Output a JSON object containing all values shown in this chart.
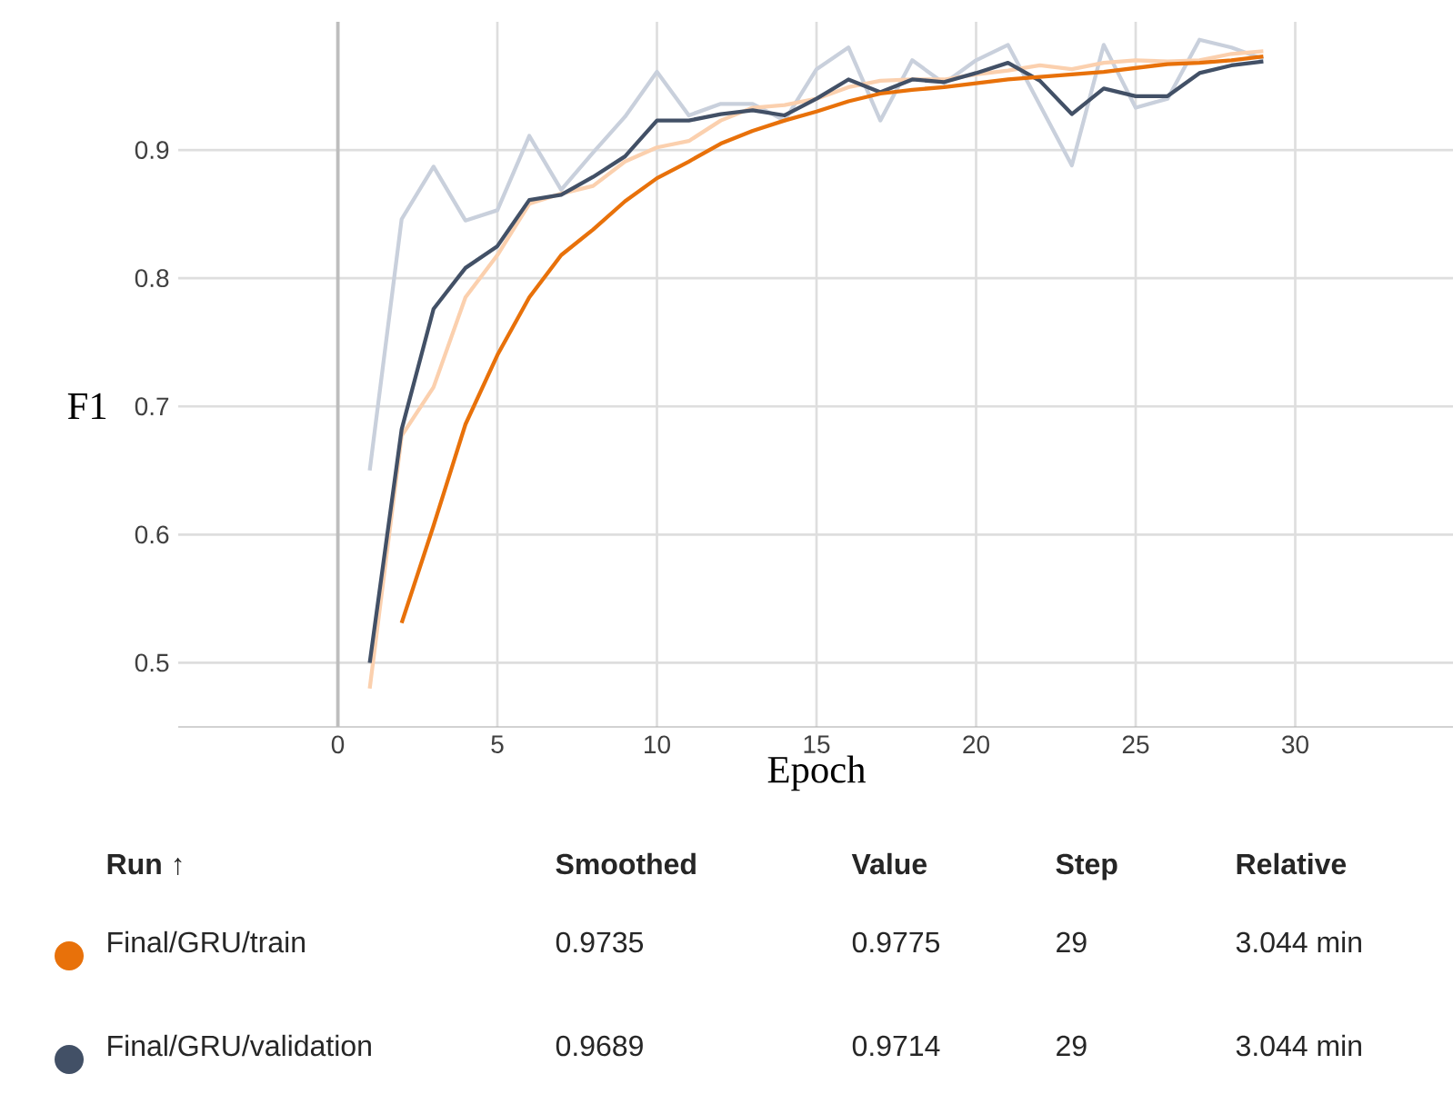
{
  "chart_data": {
    "type": "line",
    "xlabel": "Epoch",
    "ylabel": "F1",
    "x": [
      1,
      2,
      3,
      4,
      5,
      6,
      7,
      8,
      9,
      10,
      11,
      12,
      13,
      14,
      15,
      16,
      17,
      18,
      19,
      20,
      21,
      22,
      23,
      24,
      25,
      26,
      27,
      28,
      29
    ],
    "series": [
      {
        "color": "#c9d0dc",
        "values": [
          0.65,
          0.846,
          0.887,
          0.845,
          0.853,
          0.911,
          0.869,
          0.898,
          0.926,
          0.961,
          0.927,
          0.936,
          0.936,
          0.923,
          0.963,
          0.98,
          0.923,
          0.97,
          0.952,
          0.97,
          0.982,
          0.935,
          0.888,
          0.982,
          0.933,
          0.94,
          0.986,
          0.98,
          0.971
        ]
      },
      {
        "color": "#fbd0ae",
        "values": [
          0.48,
          0.677,
          0.715,
          0.785,
          0.818,
          0.858,
          0.866,
          0.872,
          0.891,
          0.902,
          0.907,
          0.923,
          0.933,
          0.935,
          0.94,
          0.949,
          0.954,
          0.955,
          0.955,
          0.959,
          0.962,
          0.966,
          0.963,
          0.968,
          0.97,
          0.969,
          0.97,
          0.975,
          0.977
        ]
      },
      {
        "name": "Final/GRU/validation",
        "color": "#425066",
        "values": [
          0.5,
          0.682,
          0.776,
          0.808,
          0.825,
          0.861,
          0.865,
          0.879,
          0.895,
          0.923,
          0.923,
          0.928,
          0.931,
          0.927,
          0.94,
          0.955,
          0.945,
          0.955,
          0.953,
          0.96,
          0.968,
          0.954,
          0.928,
          0.948,
          0.942,
          0.942,
          0.96,
          0.966,
          0.969
        ]
      },
      {
        "name": "Final/GRU/train",
        "color": "#e8710a",
        "values": [
          null,
          0.531,
          0.607,
          0.686,
          0.74,
          0.785,
          0.818,
          0.838,
          0.86,
          0.878,
          0.891,
          0.905,
          0.915,
          0.923,
          0.93,
          0.938,
          0.944,
          0.947,
          0.949,
          0.952,
          0.955,
          0.957,
          0.959,
          0.961,
          0.964,
          0.967,
          0.968,
          0.97,
          0.973
        ]
      }
    ],
    "xlim": [
      -5,
      35
    ],
    "ylim": [
      0.45,
      1.0
    ],
    "xticks": [
      0,
      5,
      10,
      15,
      20,
      25,
      30
    ],
    "yticks": [
      0.5,
      0.6,
      0.7,
      0.8,
      0.9
    ],
    "grid": true,
    "legend": "bottom",
    "marker": "none",
    "line_style": "solid",
    "ref_lines": [
      {
        "axis": "x",
        "value": 0,
        "color": "#bdbdbd"
      }
    ],
    "annotations": [
      "Run ↑",
      "Smoothed",
      "Value",
      "Step",
      "Relative",
      "0.9735",
      "0.9775",
      "29",
      "3.044 min",
      "0.9689",
      "0.9714",
      "29",
      "3.044 min"
    ]
  }
}
